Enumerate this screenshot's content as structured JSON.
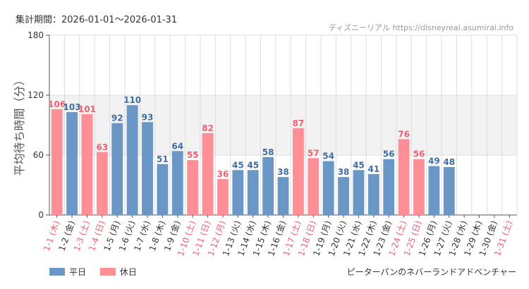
{
  "header": {
    "period": "集計期間：2026-01-01〜2026-01-31",
    "site": "ディズニーリアル https://disneyreal.asumirai.info"
  },
  "footer": {
    "attraction": "ピーターパンのネバーランドアドベンチャー"
  },
  "legend": {
    "weekday": "平日",
    "holiday": "休日"
  },
  "colors": {
    "weekday": "#6b97c6",
    "holiday": "#ff8f97",
    "weekday_text": "#3f6ea5",
    "holiday_text": "#f06070",
    "holiday_label": "#f06070",
    "weekday_label": "#333333",
    "band": "#f2f2f2",
    "grid": "#dddddd"
  },
  "chart_data": {
    "type": "bar",
    "title": "",
    "ylabel": "平均待ち時間（分）",
    "xlabel": "",
    "ylim": [
      0,
      180
    ],
    "yticks": [
      0,
      60,
      120,
      180
    ],
    "shaded_band": [
      60,
      120
    ],
    "categories": [
      "1-1 (木)",
      "1-2 (金)",
      "1-3 (土)",
      "1-4 (日)",
      "1-5 (月)",
      "1-6 (火)",
      "1-7 (水)",
      "1-8 (木)",
      "1-9 (金)",
      "1-10 (土)",
      "1-11 (日)",
      "1-12 (月)",
      "1-13 (火)",
      "1-14 (水)",
      "1-15 (木)",
      "1-16 (金)",
      "1-17 (土)",
      "1-18 (日)",
      "1-19 (月)",
      "1-20 (火)",
      "1-21 (水)",
      "1-22 (木)",
      "1-23 (金)",
      "1-24 (土)",
      "1-25 (日)",
      "1-26 (月)",
      "1-27 (火)",
      "1-28 (水)",
      "1-29 (木)",
      "1-30 (金)",
      "1-31 (土)"
    ],
    "values": [
      106,
      103,
      101,
      63,
      92,
      110,
      93,
      51,
      64,
      55,
      82,
      36,
      45,
      45,
      58,
      38,
      87,
      57,
      54,
      38,
      45,
      41,
      56,
      76,
      56,
      49,
      48,
      null,
      null,
      null,
      null
    ],
    "day_type": [
      "holiday",
      "weekday",
      "holiday",
      "holiday",
      "weekday",
      "weekday",
      "weekday",
      "weekday",
      "weekday",
      "holiday",
      "holiday",
      "holiday",
      "weekday",
      "weekday",
      "weekday",
      "weekday",
      "holiday",
      "holiday",
      "weekday",
      "weekday",
      "weekday",
      "weekday",
      "weekday",
      "holiday",
      "holiday",
      "weekday",
      "weekday",
      "weekday",
      "weekday",
      "weekday",
      "holiday"
    ],
    "series": [
      {
        "name": "平日"
      },
      {
        "name": "休日"
      }
    ]
  }
}
